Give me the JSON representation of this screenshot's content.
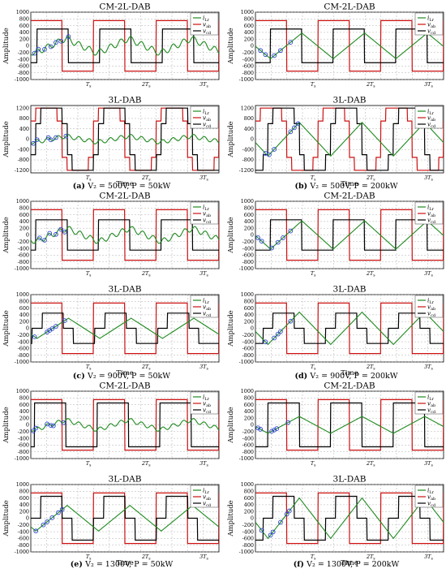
{
  "figure": {
    "captions": [
      {
        "label": "(a)",
        "text": "V₂ = 500V, P = 50kW"
      },
      {
        "label": "(b)",
        "text": "V₂ = 500V, P = 200kW"
      },
      {
        "label": "(c)",
        "text": "V₂ = 900V, P = 50kW"
      },
      {
        "label": "(d)",
        "text": "V₂ = 900V, P = 200kW"
      },
      {
        "label": "(e)",
        "text": "V₂ = 1300V, P = 50kW"
      },
      {
        "label": "(f)",
        "text": "V₂ = 1300V, P = 200kW"
      }
    ]
  },
  "colors": {
    "iLr": "#1e8a1e",
    "vab": "#cc1111",
    "vcd": "#000000",
    "marker": "#2a3fcf",
    "grid": "#9a9a9a"
  },
  "chart_data": [
    {
      "type": "line",
      "panel": "a-top",
      "title": "CM-2L-DAB",
      "ylabel": "Amplitude",
      "xlabel": "",
      "ylim": [
        -1000,
        1000
      ],
      "yticks": [
        -1000,
        -800,
        -600,
        -400,
        -200,
        0,
        200,
        400,
        600,
        800,
        1000
      ],
      "xlim": [
        0,
        1.5
      ],
      "xticks": [
        {
          "v": 0.5,
          "label": "Ts"
        },
        {
          "v": 1.0,
          "label": "2Ts"
        },
        {
          "v": 1.5,
          "label": "3Ts"
        }
      ],
      "legend": [
        "iLr",
        "vab",
        "vcd"
      ],
      "legend_position": "top-right",
      "grid": true,
      "series": [
        {
          "name": "vab",
          "color": "#cc1111",
          "kind": "square",
          "amp": 750,
          "phase": 0.0,
          "duty": 0.5
        },
        {
          "name": "vcd",
          "color": "#000000",
          "kind": "square",
          "amp": 500,
          "phase": 0.05,
          "duty": 0.5
        },
        {
          "name": "iLr",
          "color": "#1e8a1e",
          "kind": "tri",
          "amp": 220,
          "phase": 0.03,
          "ripple": 90,
          "markers": [
            0.03,
            0.06,
            0.11,
            0.16,
            0.2,
            0.24,
            0.3
          ]
        }
      ]
    },
    {
      "type": "line",
      "panel": "a-bottom",
      "title": "3L-DAB",
      "ylabel": "Amplitude",
      "xlabel": "Time",
      "ylim": [
        -1300,
        1300
      ],
      "yticks": [
        -1200,
        -800,
        -400,
        0,
        400,
        800,
        1200
      ],
      "xlim": [
        0,
        1.5
      ],
      "xticks": [
        {
          "v": 0.5,
          "label": "Ts"
        },
        {
          "v": 1.0,
          "label": "2Ts"
        },
        {
          "v": 1.5,
          "label": "3Ts"
        }
      ],
      "legend": [
        "iLr",
        "vab",
        "vcd"
      ],
      "legend_position": "top-right",
      "grid": true,
      "series": [
        {
          "name": "vab",
          "color": "#cc1111",
          "kind": "threelevel",
          "amp": 1200,
          "mid": 700,
          "phase": 0.0
        },
        {
          "name": "vcd",
          "color": "#000000",
          "kind": "threelevel",
          "amp": 1200,
          "mid": 600,
          "phase": 0.04
        },
        {
          "name": "iLr",
          "color": "#1e8a1e",
          "kind": "tri",
          "amp": 120,
          "phase": 0.03,
          "ripple": 80,
          "markers": [
            0.02,
            0.05,
            0.14,
            0.16,
            0.2,
            0.28
          ]
        }
      ]
    },
    {
      "type": "line",
      "panel": "b-top",
      "title": "CM-2L-DAB",
      "ylabel": "Amplitude",
      "xlabel": "",
      "ylim": [
        -1000,
        1000
      ],
      "yticks": [
        -1000,
        -800,
        -600,
        -400,
        -200,
        0,
        200,
        400,
        600,
        800,
        1000
      ],
      "xlim": [
        0,
        1.5
      ],
      "xticks": [
        {
          "v": 0.5,
          "label": "Ts"
        },
        {
          "v": 1.0,
          "label": "2Ts"
        },
        {
          "v": 1.5,
          "label": "3Ts"
        }
      ],
      "legend": [
        "iLr",
        "vab",
        "vcd"
      ],
      "legend_position": "top-right",
      "grid": true,
      "series": [
        {
          "name": "vab",
          "color": "#cc1111",
          "kind": "square",
          "amp": 750,
          "phase": 0.0,
          "duty": 0.5
        },
        {
          "name": "vcd",
          "color": "#000000",
          "kind": "square",
          "amp": 500,
          "phase": 0.12,
          "duty": 0.5
        },
        {
          "name": "iLr",
          "color": "#1e8a1e",
          "kind": "tri",
          "amp": 380,
          "phase": 0.12,
          "ripple": 0,
          "markers": [
            0.04,
            0.08,
            0.15,
            0.2,
            0.28
          ]
        }
      ]
    },
    {
      "type": "line",
      "panel": "b-bottom",
      "title": "3L-DAB",
      "ylabel": "Amplitude",
      "xlabel": "Time",
      "ylim": [
        -1300,
        1300
      ],
      "yticks": [
        -1200,
        -800,
        -400,
        0,
        400,
        800,
        1200
      ],
      "xlim": [
        0,
        1.5
      ],
      "xticks": [
        {
          "v": 0.5,
          "label": "Ts"
        },
        {
          "v": 1.0,
          "label": "2Ts"
        },
        {
          "v": 1.5,
          "label": "3Ts"
        }
      ],
      "legend": [
        "iLr",
        "vab",
        "vcd"
      ],
      "legend_position": "top-right",
      "grid": true,
      "series": [
        {
          "name": "vab",
          "color": "#cc1111",
          "kind": "threelevel",
          "amp": 1200,
          "mid": 700,
          "phase": 0.0
        },
        {
          "name": "vcd",
          "color": "#000000",
          "kind": "threelevel",
          "amp": 1200,
          "mid": 600,
          "phase": 0.1
        },
        {
          "name": "iLr",
          "color": "#1e8a1e",
          "kind": "tri",
          "amp": 650,
          "phase": 0.1,
          "ripple": 0,
          "markers": [
            0.08,
            0.11,
            0.15,
            0.28,
            0.31,
            0.34
          ]
        }
      ]
    },
    {
      "type": "line",
      "panel": "c-top",
      "title": "CM-2L-DAB",
      "ylabel": "Amplitude",
      "xlabel": "",
      "ylim": [
        -1000,
        1000
      ],
      "yticks": [
        -1000,
        -800,
        -600,
        -400,
        -200,
        0,
        200,
        400,
        600,
        800,
        1000
      ],
      "xlim": [
        0,
        1.5
      ],
      "xticks": [
        {
          "v": 0.5,
          "label": "Ts"
        },
        {
          "v": 1.0,
          "label": "2Ts"
        },
        {
          "v": 1.5,
          "label": "3Ts"
        }
      ],
      "legend": [
        "iLr",
        "vab",
        "vcd"
      ],
      "legend_position": "top-right",
      "grid": true,
      "series": [
        {
          "name": "vab",
          "color": "#cc1111",
          "kind": "square",
          "amp": 750,
          "phase": 0.0,
          "duty": 0.5
        },
        {
          "name": "vcd",
          "color": "#000000",
          "kind": "square",
          "amp": 450,
          "phase": 0.04,
          "duty": 0.5
        },
        {
          "name": "iLr",
          "color": "#1e8a1e",
          "kind": "tri",
          "amp": 200,
          "phase": 0.04,
          "ripple": 80,
          "markers": [
            0.07,
            0.11,
            0.15,
            0.2,
            0.24,
            0.27
          ]
        }
      ]
    },
    {
      "type": "line",
      "panel": "c-bottom",
      "title": "3L-DAB",
      "ylabel": "Amplitude",
      "xlabel": "Time",
      "ylim": [
        -1000,
        1000
      ],
      "yticks": [
        -1000,
        -800,
        -600,
        -400,
        -200,
        0,
        200,
        400,
        600,
        800,
        1000
      ],
      "xlim": [
        0,
        1.5
      ],
      "xticks": [
        {
          "v": 0.5,
          "label": "Ts"
        },
        {
          "v": 1.0,
          "label": "2Ts"
        },
        {
          "v": 1.5,
          "label": "3Ts"
        }
      ],
      "legend": [
        "iLr",
        "vab",
        "vcd"
      ],
      "legend_position": "top-right",
      "grid": true,
      "series": [
        {
          "name": "vab",
          "color": "#cc1111",
          "kind": "square",
          "amp": 750,
          "phase": 0.0,
          "duty": 0.5
        },
        {
          "name": "vcd",
          "color": "#000000",
          "kind": "threelevel",
          "amp": 450,
          "mid": 0,
          "phase": 0.05
        },
        {
          "name": "iLr",
          "color": "#1e8a1e",
          "kind": "tri",
          "amp": 300,
          "phase": 0.05,
          "ripple": 0,
          "markers": [
            0.03,
            0.13,
            0.15,
            0.17,
            0.2,
            0.27
          ]
        }
      ]
    },
    {
      "type": "line",
      "panel": "d-top",
      "title": "CM-2L-DAB",
      "ylabel": "Amplitude",
      "xlabel": "",
      "ylim": [
        -1000,
        1000
      ],
      "yticks": [
        -1000,
        -800,
        -600,
        -400,
        -200,
        0,
        200,
        400,
        600,
        800,
        1000
      ],
      "xlim": [
        0,
        1.5
      ],
      "xticks": [
        {
          "v": 0.5,
          "label": "Ts"
        },
        {
          "v": 1.0,
          "label": "2Ts"
        },
        {
          "v": 1.5,
          "label": "3Ts"
        }
      ],
      "legend": [
        "iLr",
        "vab",
        "vcd"
      ],
      "legend_position": "top-right",
      "grid": true,
      "series": [
        {
          "name": "vab",
          "color": "#cc1111",
          "kind": "square",
          "amp": 750,
          "phase": 0.0,
          "duty": 0.5
        },
        {
          "name": "vcd",
          "color": "#000000",
          "kind": "square",
          "amp": 450,
          "phase": 0.12,
          "duty": 0.5
        },
        {
          "name": "iLr",
          "color": "#1e8a1e",
          "kind": "tri",
          "amp": 420,
          "phase": 0.12,
          "ripple": 0,
          "markers": [
            0.02,
            0.05,
            0.13,
            0.18,
            0.22,
            0.28
          ]
        }
      ]
    },
    {
      "type": "line",
      "panel": "d-bottom",
      "title": "3L-DAB",
      "ylabel": "Amplitude",
      "xlabel": "Time",
      "ylim": [
        -1000,
        1000
      ],
      "yticks": [
        -1000,
        -800,
        -600,
        -400,
        -200,
        0,
        200,
        400,
        600,
        800,
        1000
      ],
      "xlim": [
        0,
        1.5
      ],
      "xticks": [
        {
          "v": 0.5,
          "label": "Ts"
        },
        {
          "v": 1.0,
          "label": "2Ts"
        },
        {
          "v": 1.5,
          "label": "3Ts"
        }
      ],
      "legend": [
        "iLr",
        "vab",
        "vcd"
      ],
      "legend_position": "top-right",
      "grid": true,
      "series": [
        {
          "name": "vab",
          "color": "#cc1111",
          "kind": "square",
          "amp": 750,
          "phase": 0.0,
          "duty": 0.5
        },
        {
          "name": "vcd",
          "color": "#000000",
          "kind": "threelevel",
          "amp": 450,
          "mid": 0,
          "phase": 0.1
        },
        {
          "name": "iLr",
          "color": "#1e8a1e",
          "kind": "tri",
          "amp": 480,
          "phase": 0.1,
          "ripple": 0,
          "markers": [
            0.08,
            0.15,
            0.18,
            0.2,
            0.28
          ]
        }
      ]
    },
    {
      "type": "line",
      "panel": "e-top",
      "title": "CM-2L-DAB",
      "ylabel": "Amplitude",
      "xlabel": "",
      "ylim": [
        -1000,
        1000
      ],
      "yticks": [
        -1000,
        -800,
        -600,
        -400,
        -200,
        0,
        200,
        400,
        600,
        800,
        1000
      ],
      "xlim": [
        0,
        1.5
      ],
      "xticks": [
        {
          "v": 0.5,
          "label": "Ts"
        },
        {
          "v": 1.0,
          "label": "2Ts"
        },
        {
          "v": 1.5,
          "label": "3Ts"
        }
      ],
      "legend": [
        "iLr",
        "vab",
        "vcd"
      ],
      "legend_position": "top-right",
      "grid": true,
      "series": [
        {
          "name": "vab",
          "color": "#cc1111",
          "kind": "square",
          "amp": 750,
          "phase": 0.0,
          "duty": 0.5
        },
        {
          "name": "vcd",
          "color": "#000000",
          "kind": "square",
          "amp": 650,
          "phase": 0.03,
          "duty": 0.5
        },
        {
          "name": "iLr",
          "color": "#1e8a1e",
          "kind": "tri",
          "amp": 150,
          "phase": 0.03,
          "ripple": 60,
          "markers": [
            0.02,
            0.04,
            0.13,
            0.16,
            0.18,
            0.26
          ]
        }
      ]
    },
    {
      "type": "line",
      "panel": "e-bottom",
      "title": "3L-DAB",
      "ylabel": "Amplitude",
      "xlabel": "Time",
      "ylim": [
        -1000,
        1000
      ],
      "yticks": [
        -1000,
        -800,
        -600,
        -400,
        -200,
        0,
        200,
        400,
        600,
        800,
        1000
      ],
      "xlim": [
        0,
        1.5
      ],
      "xticks": [
        {
          "v": 0.5,
          "label": "Ts"
        },
        {
          "v": 1.0,
          "label": "2Ts"
        },
        {
          "v": 1.5,
          "label": "3Ts"
        }
      ],
      "legend": [
        "iLr",
        "vab",
        "vcd"
      ],
      "legend_position": "top-right",
      "grid": true,
      "series": [
        {
          "name": "vab",
          "color": "#cc1111",
          "kind": "square",
          "amp": 750,
          "phase": 0.0,
          "duty": 0.5
        },
        {
          "name": "vcd",
          "color": "#000000",
          "kind": "threelevel",
          "amp": 650,
          "mid": 0,
          "phase": 0.04
        },
        {
          "name": "iLr",
          "color": "#1e8a1e",
          "kind": "tri",
          "amp": 380,
          "phase": 0.04,
          "ripple": 0,
          "markers": [
            0.04,
            0.1,
            0.13,
            0.17,
            0.22,
            0.25
          ]
        }
      ]
    },
    {
      "type": "line",
      "panel": "f-top",
      "title": "CM-2L-DAB",
      "ylabel": "Amplitude",
      "xlabel": "",
      "ylim": [
        -1000,
        1000
      ],
      "yticks": [
        -1000,
        -800,
        -600,
        -400,
        -200,
        0,
        200,
        400,
        600,
        800,
        1000
      ],
      "xlim": [
        0,
        1.5
      ],
      "xticks": [
        {
          "v": 0.5,
          "label": "Ts"
        },
        {
          "v": 1.0,
          "label": "2Ts"
        },
        {
          "v": 1.5,
          "label": "3Ts"
        }
      ],
      "legend": [
        "iLr",
        "vab",
        "vcd"
      ],
      "legend_position": "top-right",
      "grid": true,
      "series": [
        {
          "name": "vab",
          "color": "#cc1111",
          "kind": "square",
          "amp": 750,
          "phase": 0.0,
          "duty": 0.5
        },
        {
          "name": "vcd",
          "color": "#000000",
          "kind": "square",
          "amp": 650,
          "phase": 0.1,
          "duty": 0.5
        },
        {
          "name": "iLr",
          "color": "#1e8a1e",
          "kind": "tri",
          "amp": 250,
          "phase": 0.1,
          "ripple": 0,
          "markers": [
            0.02,
            0.04,
            0.13,
            0.15,
            0.17,
            0.26
          ]
        }
      ]
    },
    {
      "type": "line",
      "panel": "f-bottom",
      "title": "3L-DAB",
      "ylabel": "Amplitude",
      "xlabel": "Time",
      "ylim": [
        -1000,
        1000
      ],
      "yticks": [
        -1000,
        -800,
        -600,
        -400,
        -200,
        0,
        200,
        400,
        600,
        800,
        1000
      ],
      "xlim": [
        0,
        1.5
      ],
      "xticks": [
        {
          "v": 0.5,
          "label": "Ts"
        },
        {
          "v": 1.0,
          "label": "2Ts"
        },
        {
          "v": 1.5,
          "label": "3Ts"
        }
      ],
      "legend": [
        "iLr",
        "vab",
        "vcd"
      ],
      "legend_position": "top-right",
      "grid": true,
      "series": [
        {
          "name": "vab",
          "color": "#cc1111",
          "kind": "square",
          "amp": 750,
          "phase": 0.0,
          "duty": 0.5
        },
        {
          "name": "vcd",
          "color": "#000000",
          "kind": "threelevel",
          "amp": 650,
          "mid": 0,
          "phase": 0.1
        },
        {
          "name": "iLr",
          "color": "#1e8a1e",
          "kind": "tri",
          "amp": 600,
          "phase": 0.1,
          "ripple": 0,
          "markers": [
            0.05,
            0.12,
            0.14,
            0.2,
            0.25,
            0.27
          ]
        }
      ]
    }
  ]
}
